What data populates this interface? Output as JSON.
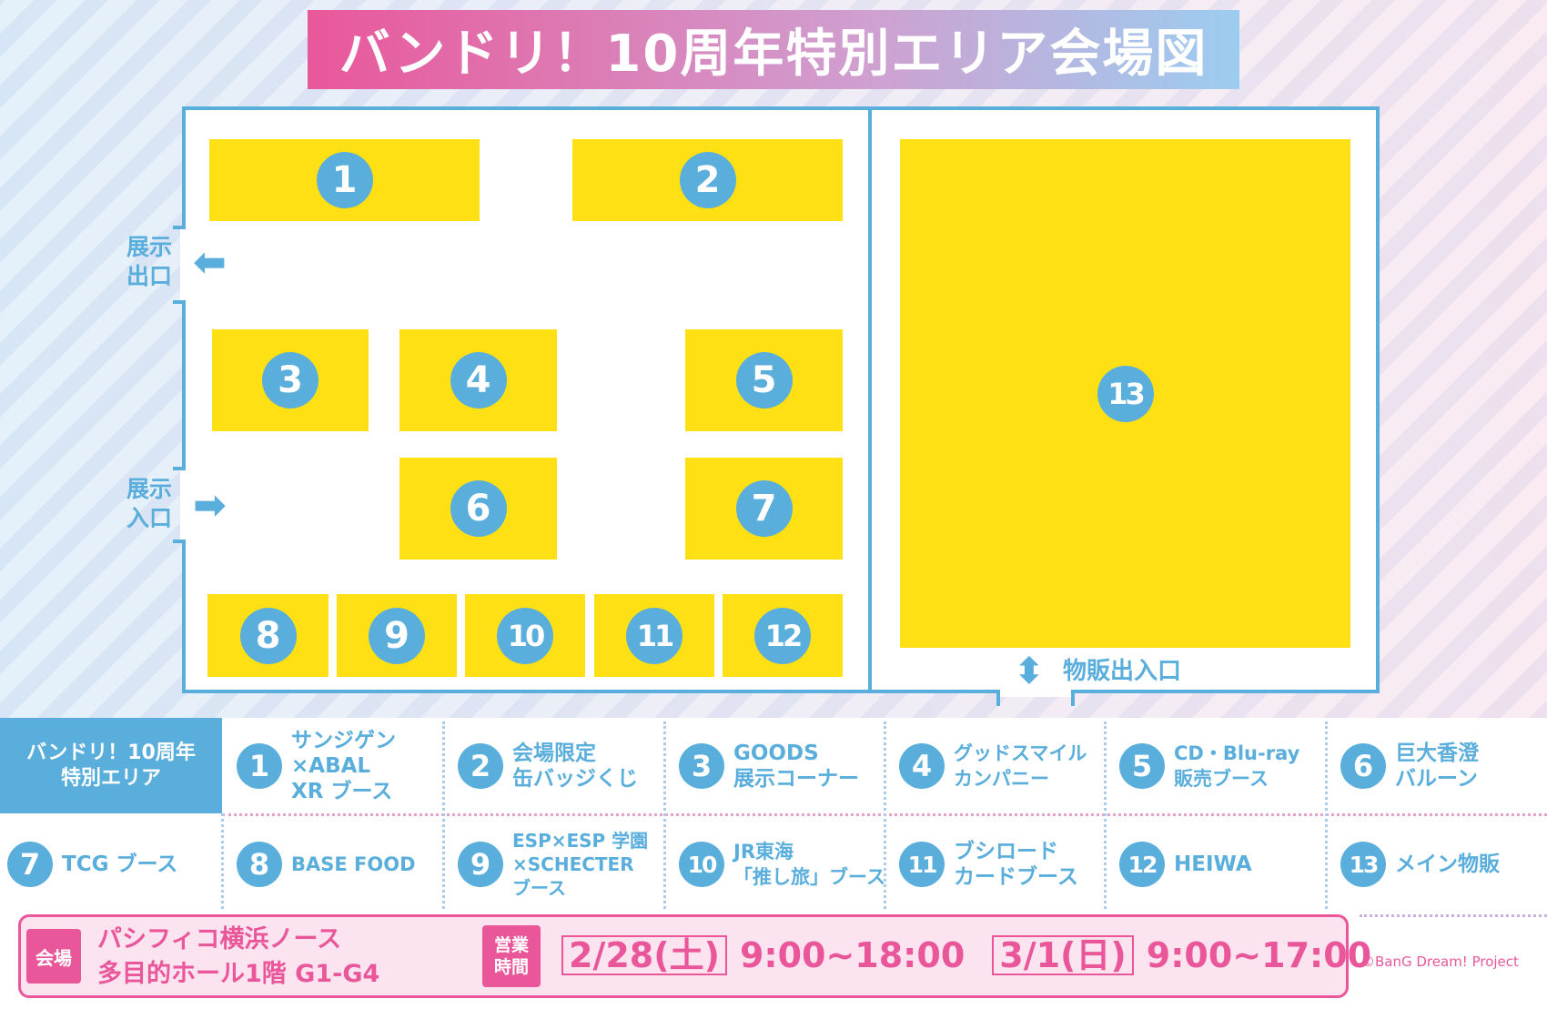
{
  "title": "バンドリ！10周年特別エリア会場図",
  "colors": {
    "booth": "#ffe014",
    "accent_blue": "#5aaedc",
    "accent_pink": "#e9579a"
  },
  "map": {
    "booths": [
      "1",
      "2",
      "3",
      "4",
      "5",
      "6",
      "7",
      "8",
      "9",
      "10",
      "11",
      "12",
      "13"
    ],
    "exhibit_exit": "展示\n出口",
    "exhibit_entrance": "展示\n入口",
    "goods_entrance": "物販出入口",
    "exit_arrow_icon": "arrow-left",
    "entrance_arrow_icon": "arrow-right",
    "goods_arrow_icon": "arrow-up-down"
  },
  "legend": {
    "header": "バンドリ！10周年\n特別エリア",
    "items": [
      {
        "num": "1",
        "label": "サンジゲン\n×ABAL\nXR ブース"
      },
      {
        "num": "2",
        "label": "会場限定\n缶バッジくじ"
      },
      {
        "num": "3",
        "label": "GOODS\n展示コーナー"
      },
      {
        "num": "4",
        "label": "グッドスマイル\nカンパニー"
      },
      {
        "num": "5",
        "label": "CD・Blu-ray\n販売ブース"
      },
      {
        "num": "6",
        "label": "巨大香澄\nバルーン"
      },
      {
        "num": "7",
        "label": "TCG ブース"
      },
      {
        "num": "8",
        "label": "BASE FOOD"
      },
      {
        "num": "9",
        "label": "ESP×ESP 学園\n×SCHECTER\nブース"
      },
      {
        "num": "10",
        "label": "JR東海\n「推し旅」ブース"
      },
      {
        "num": "11",
        "label": "ブシロード\nカードブース"
      },
      {
        "num": "12",
        "label": "HEIWA"
      },
      {
        "num": "13",
        "label": "メイン物販"
      }
    ]
  },
  "info": {
    "venue_tag": "会場",
    "venue": "パシフィコ横浜ノース\n多目的ホール1階 G1-G4",
    "hours_tag": "営業\n時間",
    "day1_date": "2/28(土)",
    "day1_hours": "9:00~18:00",
    "day2_date": "3/1(日)",
    "day2_hours": "9:00~17:00"
  },
  "copyright": "©BanG Dream! Project"
}
